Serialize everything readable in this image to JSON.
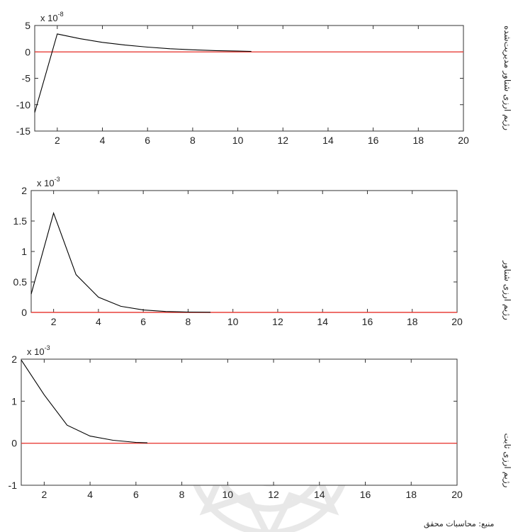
{
  "chart_data": [
    {
      "type": "line",
      "exponent_base": "x 10",
      "exponent_power": "-8",
      "side_label": "رژیم ارزی شناور مدیریت‌شده",
      "xlim": [
        1,
        20
      ],
      "ylim": [
        -15,
        5
      ],
      "xticks": [
        2,
        4,
        6,
        8,
        10,
        12,
        14,
        16,
        18,
        20
      ],
      "yticks": [
        5,
        0,
        -5,
        -10,
        -15
      ],
      "xtick_labels": [
        "2",
        "4",
        "6",
        "8",
        "10",
        "12",
        "14",
        "16",
        "18",
        "20"
      ],
      "ytick_labels": [
        "5",
        "0",
        "-5",
        "-10",
        "-15"
      ],
      "series": [
        {
          "color": "#000000",
          "x": [
            1,
            2,
            3,
            4,
            5,
            6,
            7,
            8,
            9,
            10,
            10.6
          ],
          "y": [
            -11.5,
            3.4,
            2.5,
            1.8,
            1.3,
            0.9,
            0.6,
            0.4,
            0.25,
            0.15,
            0.1
          ]
        },
        {
          "color": "#e8403a",
          "x": [
            1,
            20
          ],
          "y": [
            0,
            0
          ]
        }
      ]
    },
    {
      "type": "line",
      "exponent_base": "x 10",
      "exponent_power": "-3",
      "side_label": "رژیم ارزی شناور",
      "xlim": [
        1,
        20
      ],
      "ylim": [
        0,
        2
      ],
      "xticks": [
        2,
        4,
        6,
        8,
        10,
        12,
        14,
        16,
        18,
        20
      ],
      "yticks": [
        2,
        1.5,
        1,
        0.5,
        0
      ],
      "xtick_labels": [
        "2",
        "4",
        "6",
        "8",
        "10",
        "12",
        "14",
        "16",
        "18",
        "20"
      ],
      "ytick_labels": [
        "2",
        "1.5",
        "1",
        "0.5",
        "0"
      ],
      "series": [
        {
          "color": "#000000",
          "x": [
            1,
            2,
            3,
            4,
            5,
            6,
            7,
            8,
            9
          ],
          "y": [
            0.3,
            1.63,
            0.62,
            0.25,
            0.1,
            0.04,
            0.015,
            0.006,
            0.002
          ]
        },
        {
          "color": "#e8403a",
          "x": [
            1,
            20
          ],
          "y": [
            0,
            0
          ]
        }
      ]
    },
    {
      "type": "line",
      "exponent_base": "x 10",
      "exponent_power": "-3",
      "side_label": "رژیم ارزی ثابت",
      "xlim": [
        1,
        20
      ],
      "ylim": [
        -1,
        2
      ],
      "xticks": [
        2,
        4,
        6,
        8,
        10,
        12,
        14,
        16,
        18,
        20
      ],
      "yticks": [
        2,
        1,
        0,
        -1
      ],
      "xtick_labels": [
        "2",
        "4",
        "6",
        "8",
        "10",
        "12",
        "14",
        "16",
        "18",
        "20"
      ],
      "ytick_labels": [
        "2",
        "1",
        "0",
        "-1"
      ],
      "series": [
        {
          "color": "#000000",
          "x": [
            1,
            2,
            3,
            4,
            5,
            6,
            6.5
          ],
          "y": [
            1.98,
            1.15,
            0.43,
            0.17,
            0.07,
            0.02,
            0.01
          ]
        },
        {
          "color": "#e8403a",
          "x": [
            1,
            20
          ],
          "y": [
            0,
            0
          ]
        }
      ]
    }
  ],
  "source_note": "منبع: محاسبات محقق"
}
